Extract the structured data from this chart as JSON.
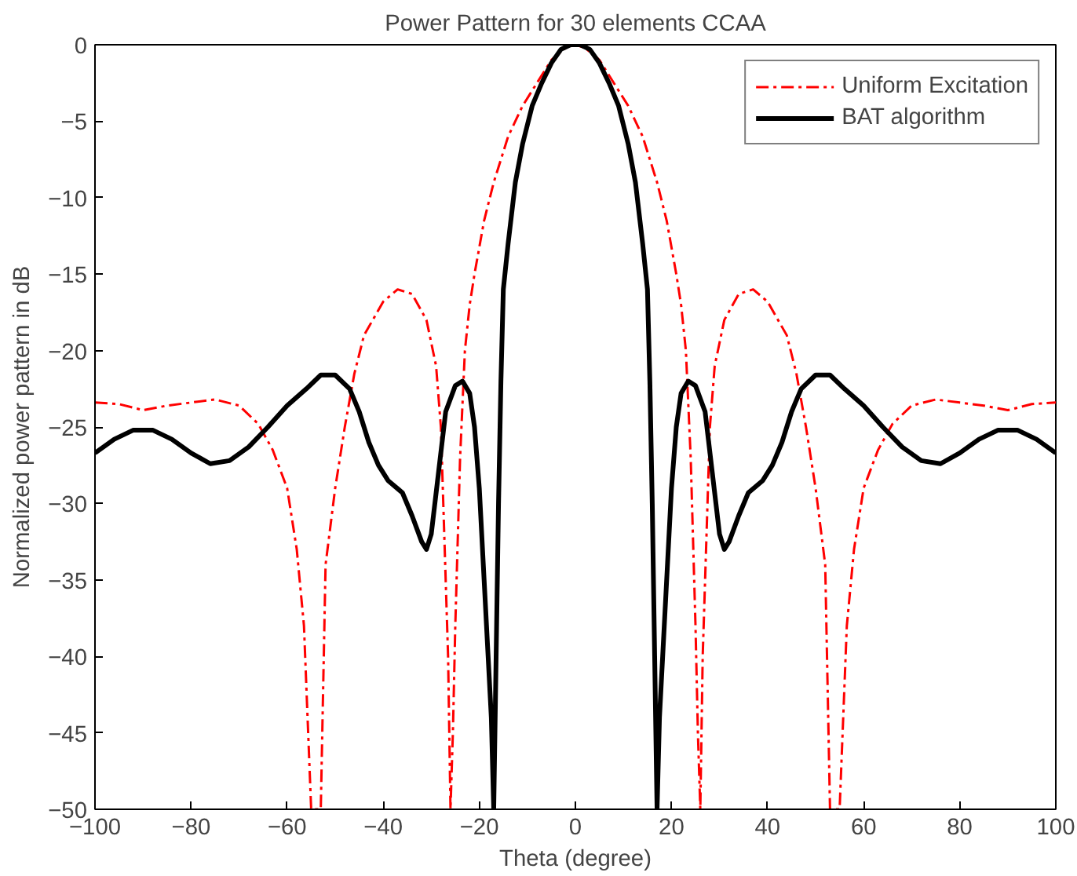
{
  "chart_data": {
    "type": "line",
    "title": "Power Pattern for 30 elements CCAA",
    "xlabel": "Theta (degree)",
    "ylabel": "Normalized power pattern in dB",
    "xlim": [
      -100,
      100
    ],
    "ylim": [
      -50,
      0
    ],
    "xticks": [
      -100,
      -80,
      -60,
      -40,
      -20,
      0,
      20,
      40,
      60,
      80,
      100
    ],
    "yticks": [
      -50,
      -45,
      -40,
      -35,
      -30,
      -25,
      -20,
      -15,
      -10,
      -5,
      0
    ],
    "grid": false,
    "legend": "top right",
    "series": [
      {
        "name": "Uniform Excitation",
        "color": "#ff0000",
        "line_style": "dashdot",
        "x": [
          -100,
          -95,
          -90,
          -85,
          -80,
          -75,
          -70,
          -66,
          -63,
          -60,
          -58,
          -56.5,
          -55,
          -53,
          -52.5,
          -52,
          -50,
          -48,
          -46,
          -44,
          -40,
          -37,
          -34,
          -31,
          -29,
          -28,
          -27.5,
          -26.5,
          -26,
          -25.5,
          -25,
          -24,
          -23,
          -22,
          -21,
          -19,
          -17,
          -14,
          -11,
          -8,
          -5,
          -2,
          0,
          2,
          5,
          8,
          11,
          14,
          17,
          19,
          21,
          22,
          23,
          24,
          25,
          25.5,
          26,
          26.5,
          27.5,
          28,
          29,
          31,
          34,
          37,
          40,
          44,
          46,
          48,
          50,
          52,
          52.5,
          53,
          55,
          56.5,
          58,
          60,
          63,
          66,
          70,
          75,
          80,
          85,
          90,
          95,
          100
        ],
        "values": [
          -23.4,
          -23.5,
          -23.9,
          -23.6,
          -23.4,
          -23.2,
          -23.6,
          -24.8,
          -26.5,
          -29,
          -33,
          -38,
          -50,
          -50,
          -42,
          -34,
          -29,
          -25,
          -21.5,
          -19,
          -16.8,
          -16,
          -16.3,
          -18,
          -21,
          -25,
          -30,
          -40,
          -50,
          -45,
          -38,
          -27,
          -20,
          -17,
          -15,
          -11.5,
          -9,
          -6,
          -4,
          -2.5,
          -1,
          -0.2,
          0,
          -0.2,
          -1,
          -2.5,
          -4,
          -6,
          -9,
          -11.5,
          -15,
          -17,
          -20,
          -27,
          -38,
          -45,
          -50,
          -40,
          -30,
          -25,
          -21,
          -18,
          -16.3,
          -16,
          -16.8,
          -19,
          -21.5,
          -25,
          -29,
          -34,
          -42,
          -50,
          -50,
          -38,
          -33,
          -29,
          -26.5,
          -24.8,
          -23.6,
          -23.2,
          -23.4,
          -23.6,
          -23.9,
          -23.5,
          -23.4
        ]
      },
      {
        "name": "BAT algorithm",
        "color": "#000000",
        "line_style": "solid",
        "x": [
          -100,
          -96,
          -92,
          -88,
          -84,
          -80,
          -76,
          -72,
          -68,
          -64,
          -60,
          -56,
          -53,
          -50,
          -47,
          -45,
          -43,
          -41,
          -39,
          -36,
          -34,
          -32,
          -31,
          -30,
          -28.5,
          -27,
          -25,
          -23.5,
          -22,
          -21,
          -20,
          -19,
          -18.5,
          -17.5,
          -17,
          -16.5,
          -16,
          -15.5,
          -15,
          -14,
          -12.5,
          -11,
          -9,
          -7,
          -5,
          -3,
          -1,
          0,
          1,
          3,
          5,
          7,
          9,
          11,
          12.5,
          14,
          15,
          15.5,
          16,
          16.5,
          17,
          17.5,
          18.5,
          19,
          20,
          21,
          22,
          23.5,
          25,
          27,
          28.5,
          30,
          31,
          32,
          34,
          36,
          39,
          41,
          43,
          45,
          47,
          50,
          53,
          56,
          60,
          64,
          68,
          72,
          76,
          80,
          84,
          88,
          92,
          96,
          100
        ],
        "values": [
          -26.7,
          -25.8,
          -25.2,
          -25.2,
          -25.8,
          -26.7,
          -27.4,
          -27.2,
          -26.3,
          -25,
          -23.6,
          -22.5,
          -21.6,
          -21.6,
          -22.5,
          -24,
          -26,
          -27.5,
          -28.5,
          -29.3,
          -30.8,
          -32.5,
          -33,
          -32,
          -28,
          -24,
          -22.3,
          -22,
          -22.8,
          -25,
          -29,
          -35,
          -38,
          -44,
          -50,
          -40,
          -30,
          -22,
          -16,
          -13,
          -9,
          -6.5,
          -4,
          -2.5,
          -1.2,
          -0.3,
          0,
          0,
          0,
          -0.3,
          -1.2,
          -2.5,
          -4,
          -6.5,
          -9,
          -13,
          -16,
          -22,
          -30,
          -40,
          -50,
          -44,
          -38,
          -35,
          -29,
          -25,
          -22.8,
          -22,
          -22.3,
          -24,
          -28,
          -32,
          -33,
          -32.5,
          -30.8,
          -29.3,
          -28.5,
          -27.5,
          -26,
          -24,
          -22.5,
          -21.6,
          -21.6,
          -22.5,
          -23.6,
          -25,
          -26.3,
          -27.2,
          -27.4,
          -26.7,
          -25.8,
          -25.2,
          -25.2,
          -25.8,
          -26.7
        ]
      }
    ]
  }
}
